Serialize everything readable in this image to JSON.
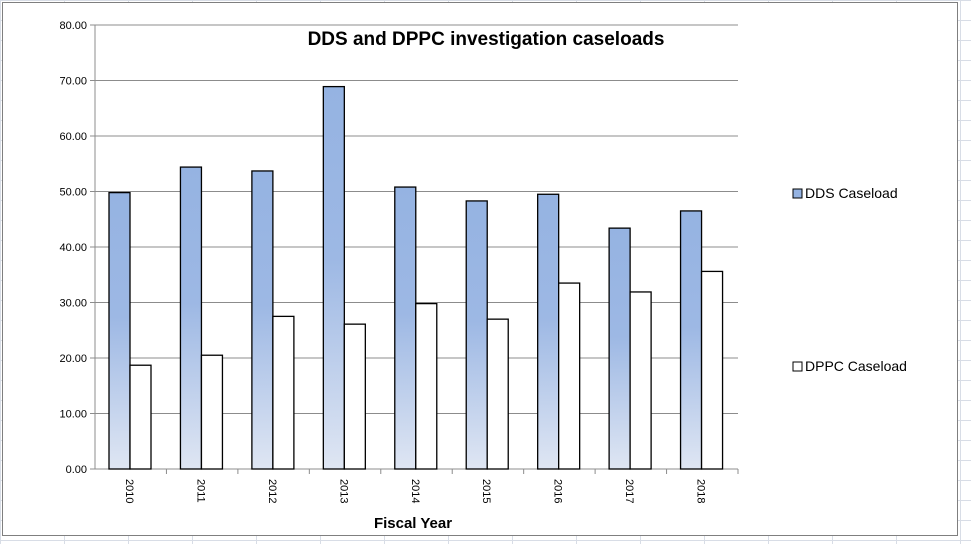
{
  "chart_data": {
    "type": "bar",
    "title": "DDS and DPPC investigation caseloads",
    "xlabel": "Fiscal Year",
    "ylabel": "",
    "ylim": [
      0,
      80
    ],
    "yticks": [
      "0.00",
      "10.00",
      "20.00",
      "30.00",
      "40.00",
      "50.00",
      "60.00",
      "70.00",
      "80.00"
    ],
    "grid": true,
    "legend": "right",
    "categories": [
      "2010",
      "2011",
      "2012",
      "2013",
      "2014",
      "2015",
      "2016",
      "2017",
      "2018"
    ],
    "series": [
      {
        "name": "DDS Caseload",
        "values": [
          49.8,
          54.4,
          53.7,
          68.9,
          50.8,
          48.3,
          49.5,
          43.4,
          46.5
        ],
        "color": "#95b3e2"
      },
      {
        "name": "DPPC Caseload",
        "values": [
          18.7,
          20.5,
          27.5,
          26.1,
          29.8,
          27.0,
          33.5,
          31.9,
          35.6
        ],
        "color": "#ffffff"
      }
    ]
  }
}
